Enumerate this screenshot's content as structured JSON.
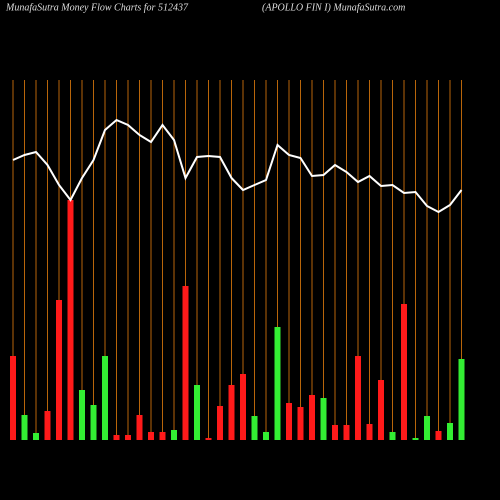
{
  "chart_data": {
    "type": "bar",
    "title": "MunafaSutra  Money Flow  Charts for 512437",
    "subtitle": "(APOLLO FIN   I) MunafaSutra.com",
    "ylim": [
      0,
      360
    ],
    "grid_color": "#b8650a",
    "line_color": "#ffffff",
    "series": [
      {
        "name": "money flow",
        "values": [
          84,
          25,
          7,
          29,
          140,
          240,
          50,
          35,
          84,
          5,
          5,
          25,
          8,
          8,
          10,
          154,
          55,
          2,
          34,
          55,
          66,
          24,
          8,
          113,
          37,
          33,
          45,
          42,
          15,
          15,
          84,
          16,
          60,
          8,
          136,
          2,
          24,
          9,
          17,
          81
        ],
        "colors": [
          "#ff1a1a",
          "#33ee33",
          "#33ee33",
          "#ff1a1a",
          "#ff1a1a",
          "#ff1a1a",
          "#33ee33",
          "#33ee33",
          "#33ee33",
          "#ff1a1a",
          "#ff1a1a",
          "#ff1a1a",
          "#ff1a1a",
          "#ff1a1a",
          "#33ee33",
          "#ff1a1a",
          "#33ee33",
          "#ff1a1a",
          "#ff1a1a",
          "#ff1a1a",
          "#ff1a1a",
          "#33ee33",
          "#33ee33",
          "#33ee33",
          "#ff1a1a",
          "#ff1a1a",
          "#ff1a1a",
          "#33ee33",
          "#ff1a1a",
          "#ff1a1a",
          "#ff1a1a",
          "#ff1a1a",
          "#ff1a1a",
          "#33ee33",
          "#ff1a1a",
          "#33ee33",
          "#33ee33",
          "#ff1a1a",
          "#33ee33",
          "#33ee33"
        ]
      },
      {
        "name": "price",
        "values": [
          280,
          285,
          288,
          275,
          255,
          240,
          262,
          280,
          310,
          320,
          315,
          305,
          298,
          315,
          300,
          262,
          283,
          284,
          283,
          262,
          250,
          255,
          260,
          295,
          285,
          282,
          264,
          265,
          275,
          268,
          258,
          264,
          254,
          255,
          247,
          248,
          234,
          228,
          235,
          250
        ]
      }
    ]
  }
}
